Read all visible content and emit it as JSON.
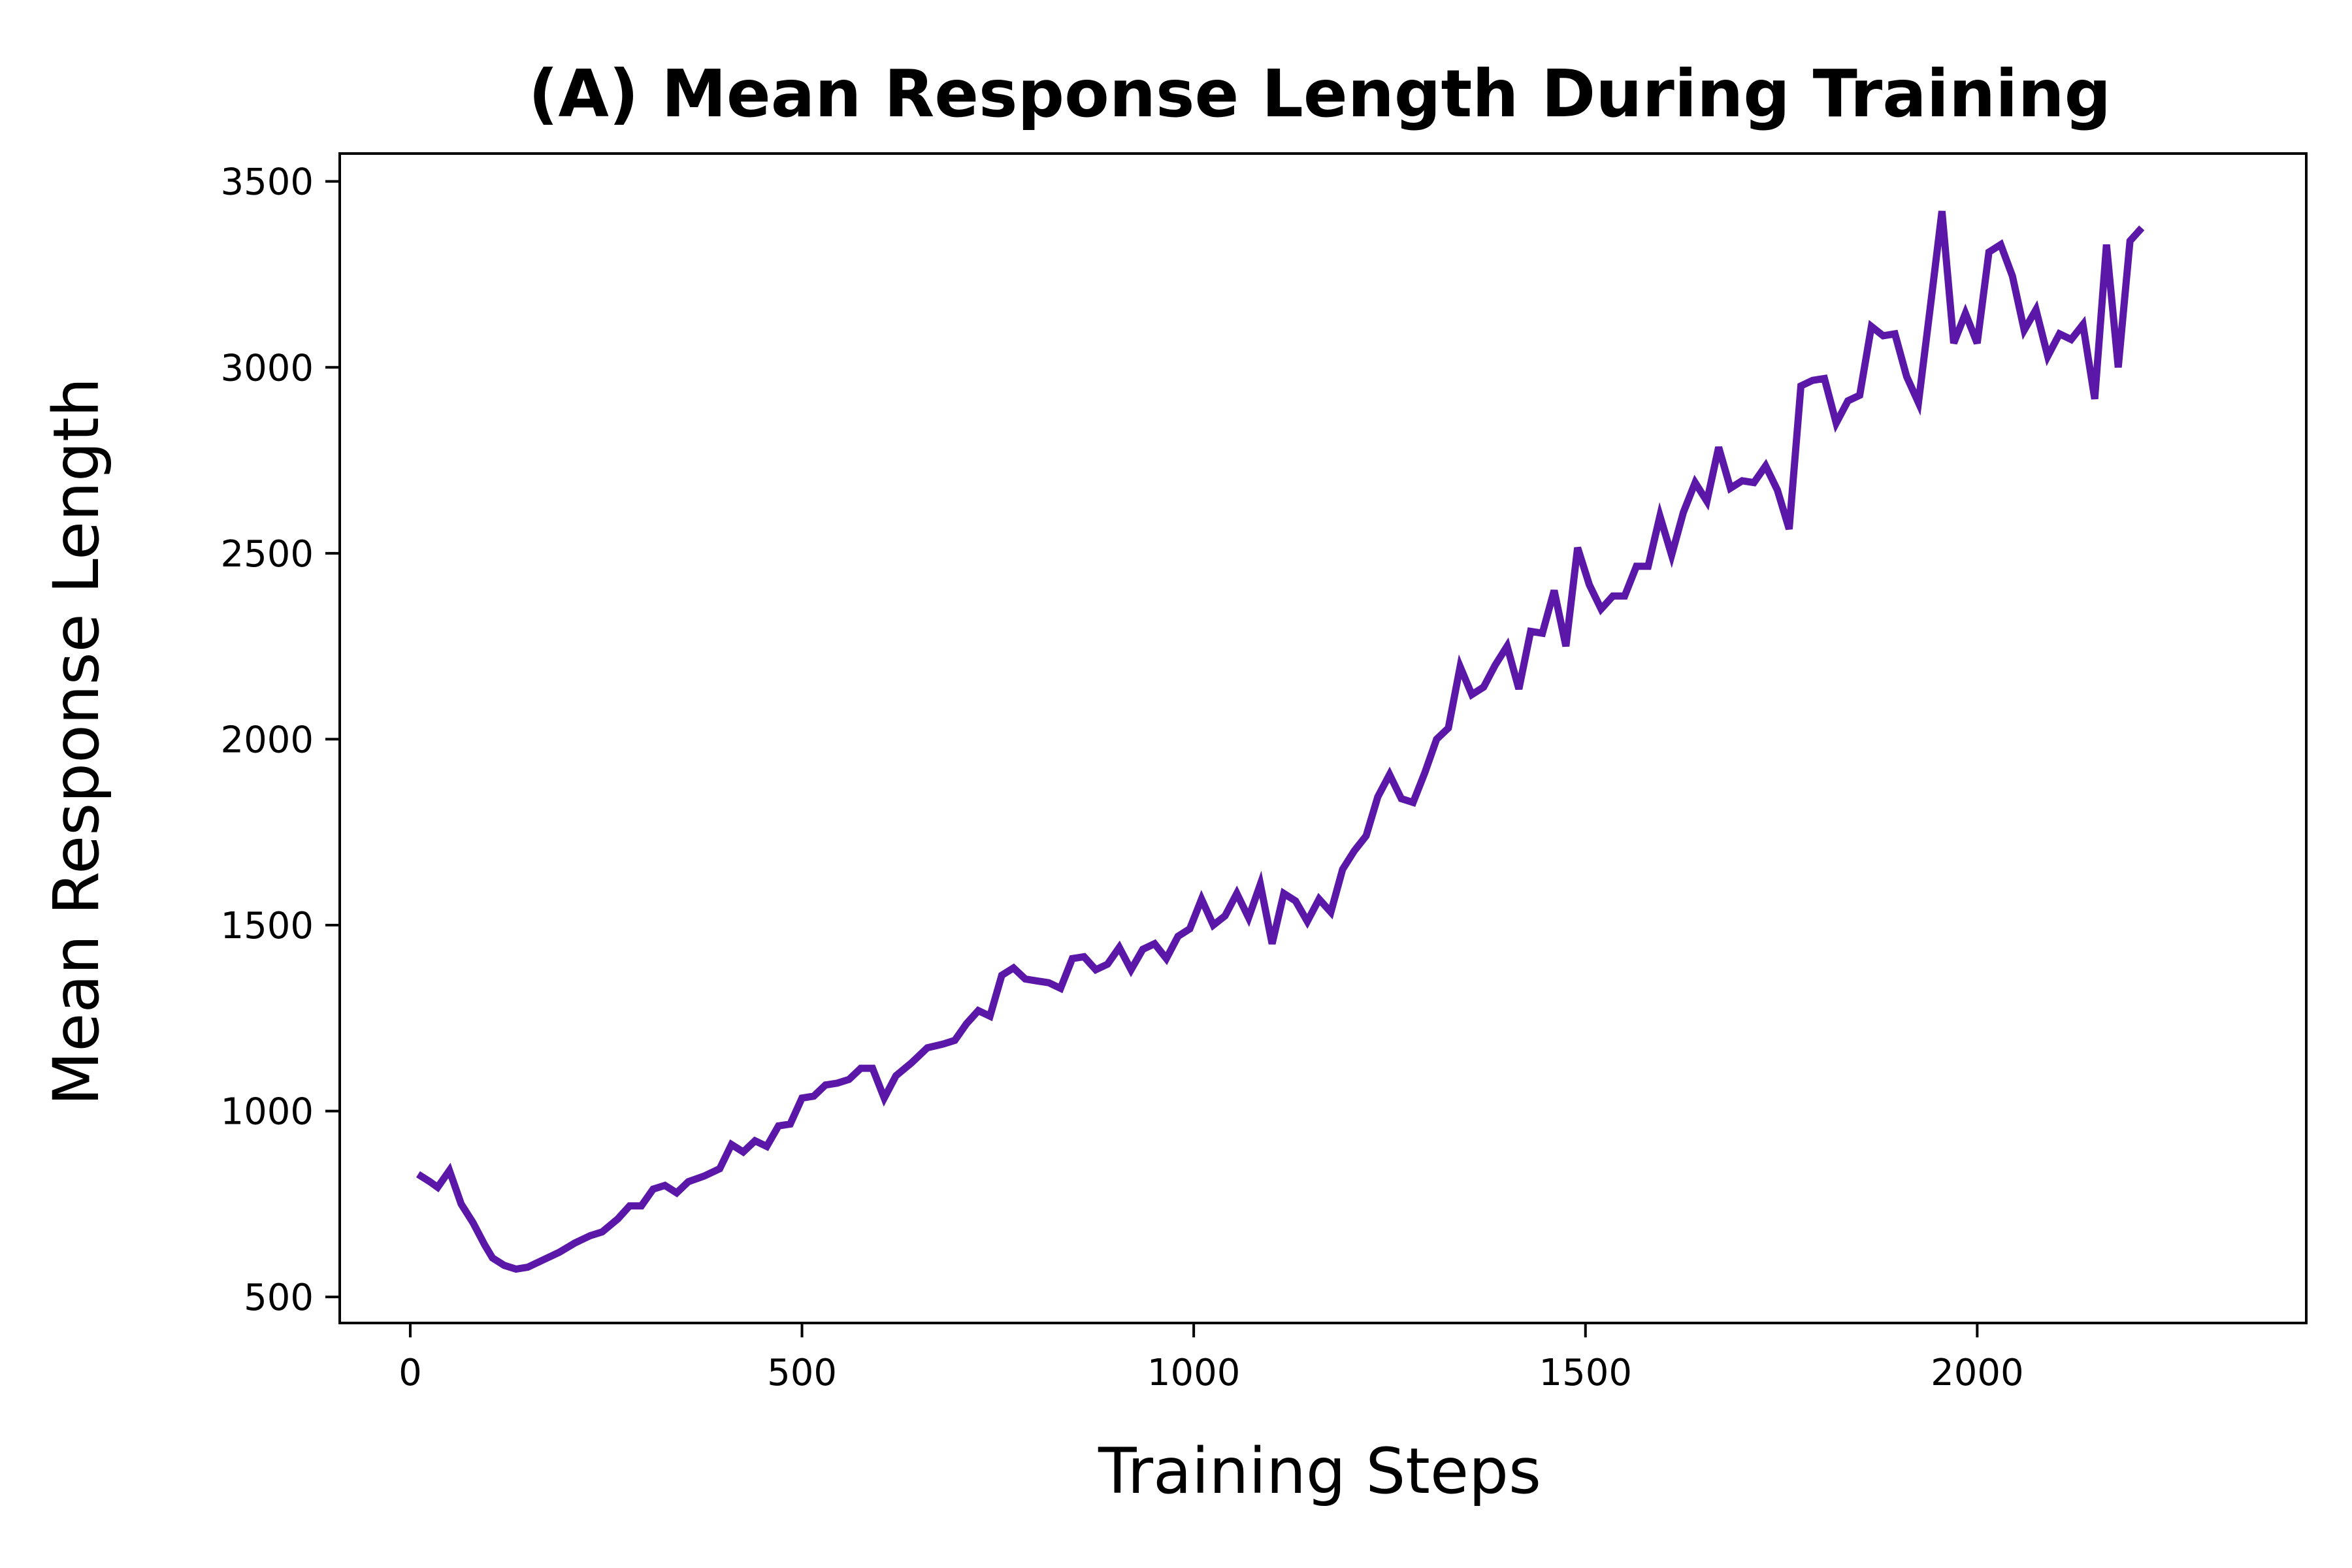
{
  "chart_data": {
    "type": "line",
    "title": "(A) Mean Response Length During Training",
    "xlabel": "Training Steps",
    "ylabel": "Mean Response Length",
    "xlim": [
      -90,
      2420
    ],
    "ylim": [
      430,
      3575
    ],
    "xticks": [
      0,
      500,
      1000,
      1500,
      2000
    ],
    "yticks": [
      500,
      1000,
      1500,
      2000,
      2500,
      3000,
      3500
    ],
    "grid": false,
    "legend": "none",
    "series": [
      {
        "color": "#5b17a8",
        "points": [
          [
            10,
            830
          ],
          [
            25,
            810
          ],
          [
            35,
            795
          ],
          [
            50,
            840
          ],
          [
            65,
            750
          ],
          [
            80,
            700
          ],
          [
            95,
            640
          ],
          [
            105,
            605
          ],
          [
            120,
            585
          ],
          [
            135,
            575
          ],
          [
            150,
            580
          ],
          [
            170,
            600
          ],
          [
            190,
            620
          ],
          [
            210,
            645
          ],
          [
            230,
            665
          ],
          [
            245,
            675
          ],
          [
            265,
            710
          ],
          [
            280,
            745
          ],
          [
            295,
            745
          ],
          [
            310,
            790
          ],
          [
            325,
            800
          ],
          [
            340,
            780
          ],
          [
            355,
            810
          ],
          [
            375,
            825
          ],
          [
            395,
            845
          ],
          [
            410,
            910
          ],
          [
            425,
            890
          ],
          [
            440,
            920
          ],
          [
            455,
            905
          ],
          [
            470,
            960
          ],
          [
            485,
            965
          ],
          [
            500,
            1035
          ],
          [
            515,
            1040
          ],
          [
            530,
            1070
          ],
          [
            545,
            1075
          ],
          [
            560,
            1085
          ],
          [
            575,
            1115
          ],
          [
            590,
            1115
          ],
          [
            605,
            1035
          ],
          [
            620,
            1095
          ],
          [
            640,
            1130
          ],
          [
            660,
            1170
          ],
          [
            680,
            1180
          ],
          [
            695,
            1190
          ],
          [
            710,
            1235
          ],
          [
            725,
            1270
          ],
          [
            740,
            1255
          ],
          [
            755,
            1365
          ],
          [
            770,
            1385
          ],
          [
            785,
            1355
          ],
          [
            800,
            1350
          ],
          [
            815,
            1345
          ],
          [
            830,
            1330
          ],
          [
            845,
            1410
          ],
          [
            860,
            1415
          ],
          [
            875,
            1380
          ],
          [
            890,
            1395
          ],
          [
            905,
            1440
          ],
          [
            920,
            1380
          ],
          [
            935,
            1435
          ],
          [
            950,
            1450
          ],
          [
            965,
            1410
          ],
          [
            980,
            1470
          ],
          [
            995,
            1490
          ],
          [
            1010,
            1570
          ],
          [
            1025,
            1500
          ],
          [
            1040,
            1525
          ],
          [
            1055,
            1585
          ],
          [
            1070,
            1520
          ],
          [
            1085,
            1610
          ],
          [
            1100,
            1450
          ],
          [
            1115,
            1585
          ],
          [
            1130,
            1565
          ],
          [
            1145,
            1510
          ],
          [
            1160,
            1570
          ],
          [
            1175,
            1535
          ],
          [
            1190,
            1650
          ],
          [
            1205,
            1700
          ],
          [
            1220,
            1740
          ],
          [
            1235,
            1845
          ],
          [
            1250,
            1905
          ],
          [
            1265,
            1840
          ],
          [
            1280,
            1830
          ],
          [
            1295,
            1910
          ],
          [
            1310,
            2000
          ],
          [
            1325,
            2030
          ],
          [
            1340,
            2195
          ],
          [
            1355,
            2120
          ],
          [
            1370,
            2140
          ],
          [
            1385,
            2200
          ],
          [
            1400,
            2250
          ],
          [
            1415,
            2135
          ],
          [
            1430,
            2290
          ],
          [
            1445,
            2285
          ],
          [
            1460,
            2400
          ],
          [
            1475,
            2250
          ],
          [
            1490,
            2515
          ],
          [
            1505,
            2415
          ],
          [
            1520,
            2350
          ],
          [
            1535,
            2385
          ],
          [
            1550,
            2385
          ],
          [
            1565,
            2465
          ],
          [
            1580,
            2465
          ],
          [
            1595,
            2600
          ],
          [
            1610,
            2495
          ],
          [
            1625,
            2610
          ],
          [
            1640,
            2690
          ],
          [
            1655,
            2640
          ],
          [
            1670,
            2785
          ],
          [
            1685,
            2675
          ],
          [
            1700,
            2695
          ],
          [
            1715,
            2690
          ],
          [
            1730,
            2735
          ],
          [
            1745,
            2670
          ],
          [
            1760,
            2565
          ],
          [
            1775,
            2950
          ],
          [
            1790,
            2965
          ],
          [
            1805,
            2970
          ],
          [
            1820,
            2850
          ],
          [
            1835,
            2910
          ],
          [
            1850,
            2925
          ],
          [
            1865,
            3110
          ],
          [
            1880,
            3085
          ],
          [
            1895,
            3090
          ],
          [
            1910,
            2975
          ],
          [
            1925,
            2905
          ],
          [
            1940,
            3160
          ],
          [
            1955,
            3420
          ],
          [
            1970,
            3065
          ],
          [
            1985,
            3145
          ],
          [
            2000,
            3065
          ],
          [
            2015,
            3310
          ],
          [
            2030,
            3330
          ],
          [
            2045,
            3245
          ],
          [
            2060,
            3100
          ],
          [
            2075,
            3155
          ],
          [
            2090,
            3030
          ],
          [
            2105,
            3090
          ],
          [
            2120,
            3075
          ],
          [
            2135,
            3115
          ],
          [
            2150,
            2915
          ],
          [
            2165,
            3330
          ],
          [
            2180,
            3000
          ],
          [
            2195,
            3340
          ],
          [
            2210,
            3375
          ]
        ]
      }
    ]
  }
}
